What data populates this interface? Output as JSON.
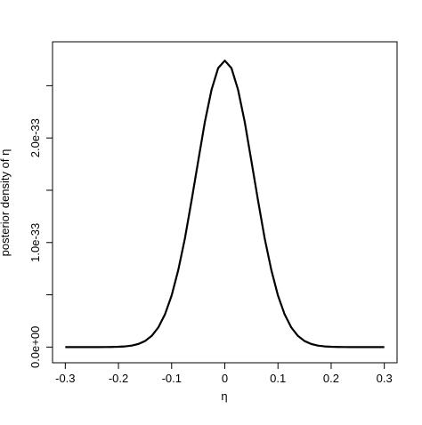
{
  "chart_data": {
    "type": "line",
    "xlabel": "η",
    "ylabel": "posterior density of η",
    "x": [
      -0.3,
      -0.275,
      -0.25,
      -0.2375,
      -0.225,
      -0.2125,
      -0.2,
      -0.1875,
      -0.175,
      -0.1625,
      -0.15,
      -0.1375,
      -0.125,
      -0.1125,
      -0.1,
      -0.0875,
      -0.075,
      -0.0625,
      -0.05,
      -0.0375,
      -0.025,
      -0.0125,
      0,
      0.0125,
      0.025,
      0.0375,
      0.05,
      0.0625,
      0.075,
      0.0875,
      0.1,
      0.1125,
      0.125,
      0.1375,
      0.15,
      0.1625,
      0.175,
      0.1875,
      0.2,
      0.2125,
      0.225,
      0.2375,
      0.25,
      0.275,
      0.3
    ],
    "series": [
      {
        "color": "#000000",
        "values": [
          0,
          0,
          6e-38,
          1.7e-37,
          4.7e-37,
          1.2e-36,
          2.9e-36,
          6.6e-36,
          1.44e-35,
          2.96e-35,
          5.78e-35,
          1.07e-34,
          1.88e-34,
          3.13e-34,
          4.93e-34,
          7.37e-34,
          1.04e-33,
          1.402e-33,
          1.78e-33,
          2.153e-33,
          2.46e-33,
          2.668e-33,
          2.74e-33,
          2.668e-33,
          2.46e-33,
          2.153e-33,
          1.78e-33,
          1.402e-33,
          1.04e-33,
          7.37e-34,
          4.93e-34,
          3.13e-34,
          1.88e-34,
          1.07e-34,
          5.78e-35,
          2.96e-35,
          1.44e-35,
          6.6e-36,
          2.9e-36,
          1.2e-36,
          4.7e-37,
          1.7e-37,
          6e-38,
          0,
          0
        ]
      }
    ],
    "xlim": [
      -0.324,
      0.324
    ],
    "xticks": [
      -0.3,
      -0.2,
      -0.1,
      0.0,
      0.1,
      0.2,
      0.3
    ],
    "ylim": [
      -1.5e-34,
      2.92e-33
    ],
    "yticks": [
      {
        "value": 0,
        "label": "0.0e+00"
      },
      {
        "value": 1e-33,
        "label": "1.0e-33"
      },
      {
        "value": 2e-33,
        "label": "2.0e-33"
      }
    ],
    "yminorticks": [
      5e-34,
      1.5e-33,
      2.5e-33
    ]
  }
}
